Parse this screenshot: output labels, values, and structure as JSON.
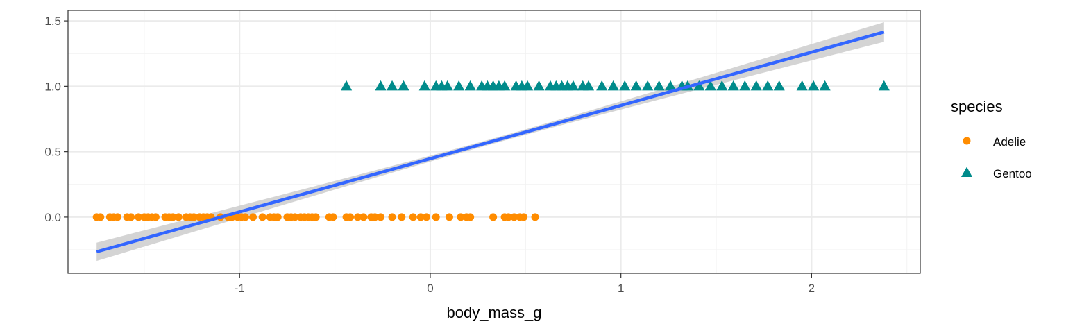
{
  "chart_data": {
    "type": "scatter",
    "title": "",
    "xlabel": "body_mass_g",
    "ylabel": "",
    "xlim": [
      -1.9,
      2.57
    ],
    "ylim": [
      -0.43,
      1.58
    ],
    "x_ticks": [
      -1,
      0,
      1,
      2
    ],
    "y_ticks": [
      0.0,
      0.5,
      1.0,
      1.5
    ],
    "x_tick_labels": [
      "-1",
      "0",
      "1",
      "2"
    ],
    "y_tick_labels": [
      "0.0",
      "0.5",
      "1.0",
      "1.5"
    ],
    "grid": true,
    "legend": {
      "title": "species",
      "position": "right"
    },
    "series": [
      {
        "name": "Adelie",
        "marker": "circle",
        "color": "#FF8C00",
        "points": [
          [
            -1.75,
            0
          ],
          [
            -1.73,
            0
          ],
          [
            -1.68,
            0
          ],
          [
            -1.66,
            0
          ],
          [
            -1.64,
            0
          ],
          [
            -1.59,
            0
          ],
          [
            -1.57,
            0
          ],
          [
            -1.53,
            0
          ],
          [
            -1.5,
            0
          ],
          [
            -1.48,
            0
          ],
          [
            -1.46,
            0
          ],
          [
            -1.44,
            0
          ],
          [
            -1.39,
            0
          ],
          [
            -1.37,
            0
          ],
          [
            -1.35,
            0
          ],
          [
            -1.32,
            0
          ],
          [
            -1.28,
            0
          ],
          [
            -1.26,
            0
          ],
          [
            -1.24,
            0
          ],
          [
            -1.21,
            0
          ],
          [
            -1.19,
            0
          ],
          [
            -1.17,
            0
          ],
          [
            -1.15,
            0
          ],
          [
            -1.1,
            0
          ],
          [
            -1.06,
            0
          ],
          [
            -1.04,
            0
          ],
          [
            -1.01,
            0
          ],
          [
            -0.99,
            0
          ],
          [
            -0.97,
            0
          ],
          [
            -0.93,
            0
          ],
          [
            -0.88,
            0
          ],
          [
            -0.84,
            0
          ],
          [
            -0.82,
            0
          ],
          [
            -0.8,
            0
          ],
          [
            -0.75,
            0
          ],
          [
            -0.73,
            0
          ],
          [
            -0.71,
            0
          ],
          [
            -0.68,
            0
          ],
          [
            -0.66,
            0
          ],
          [
            -0.64,
            0
          ],
          [
            -0.62,
            0
          ],
          [
            -0.6,
            0
          ],
          [
            -0.53,
            0
          ],
          [
            -0.51,
            0
          ],
          [
            -0.44,
            0
          ],
          [
            -0.42,
            0
          ],
          [
            -0.38,
            0
          ],
          [
            -0.35,
            0
          ],
          [
            -0.31,
            0
          ],
          [
            -0.29,
            0
          ],
          [
            -0.26,
            0
          ],
          [
            -0.2,
            0
          ],
          [
            -0.15,
            0
          ],
          [
            -0.09,
            0
          ],
          [
            -0.05,
            0
          ],
          [
            -0.02,
            0
          ],
          [
            0.03,
            0
          ],
          [
            0.1,
            0
          ],
          [
            0.16,
            0
          ],
          [
            0.19,
            0
          ],
          [
            0.21,
            0
          ],
          [
            0.33,
            0
          ],
          [
            0.39,
            0
          ],
          [
            0.41,
            0
          ],
          [
            0.44,
            0
          ],
          [
            0.47,
            0
          ],
          [
            0.49,
            0
          ],
          [
            0.55,
            0
          ]
        ]
      },
      {
        "name": "Gentoo",
        "marker": "triangle",
        "color": "#008B8B",
        "points": [
          [
            -0.44,
            1
          ],
          [
            -0.26,
            1
          ],
          [
            -0.2,
            1
          ],
          [
            -0.14,
            1
          ],
          [
            -0.03,
            1
          ],
          [
            0.03,
            1
          ],
          [
            0.06,
            1
          ],
          [
            0.09,
            1
          ],
          [
            0.15,
            1
          ],
          [
            0.21,
            1
          ],
          [
            0.27,
            1
          ],
          [
            0.3,
            1
          ],
          [
            0.33,
            1
          ],
          [
            0.36,
            1
          ],
          [
            0.39,
            1
          ],
          [
            0.45,
            1
          ],
          [
            0.48,
            1
          ],
          [
            0.51,
            1
          ],
          [
            0.57,
            1
          ],
          [
            0.63,
            1
          ],
          [
            0.66,
            1
          ],
          [
            0.69,
            1
          ],
          [
            0.72,
            1
          ],
          [
            0.75,
            1
          ],
          [
            0.8,
            1
          ],
          [
            0.83,
            1
          ],
          [
            0.9,
            1
          ],
          [
            0.96,
            1
          ],
          [
            1.02,
            1
          ],
          [
            1.08,
            1
          ],
          [
            1.14,
            1
          ],
          [
            1.2,
            1
          ],
          [
            1.26,
            1
          ],
          [
            1.32,
            1
          ],
          [
            1.35,
            1
          ],
          [
            1.41,
            1
          ],
          [
            1.47,
            1
          ],
          [
            1.53,
            1
          ],
          [
            1.59,
            1
          ],
          [
            1.65,
            1
          ],
          [
            1.71,
            1
          ],
          [
            1.77,
            1
          ],
          [
            1.83,
            1
          ],
          [
            1.95,
            1
          ],
          [
            2.01,
            1
          ],
          [
            2.07,
            1
          ],
          [
            2.38,
            1
          ]
        ]
      }
    ],
    "fit_line": {
      "color": "#3366FF",
      "x": [
        -1.75,
        2.38
      ],
      "y": [
        -0.265,
        1.415
      ],
      "ci_halfwidth_ends": [
        0.07,
        0.075
      ],
      "ci_halfwidth_center": 0.02,
      "ci_color": "#CCCCCC"
    }
  }
}
